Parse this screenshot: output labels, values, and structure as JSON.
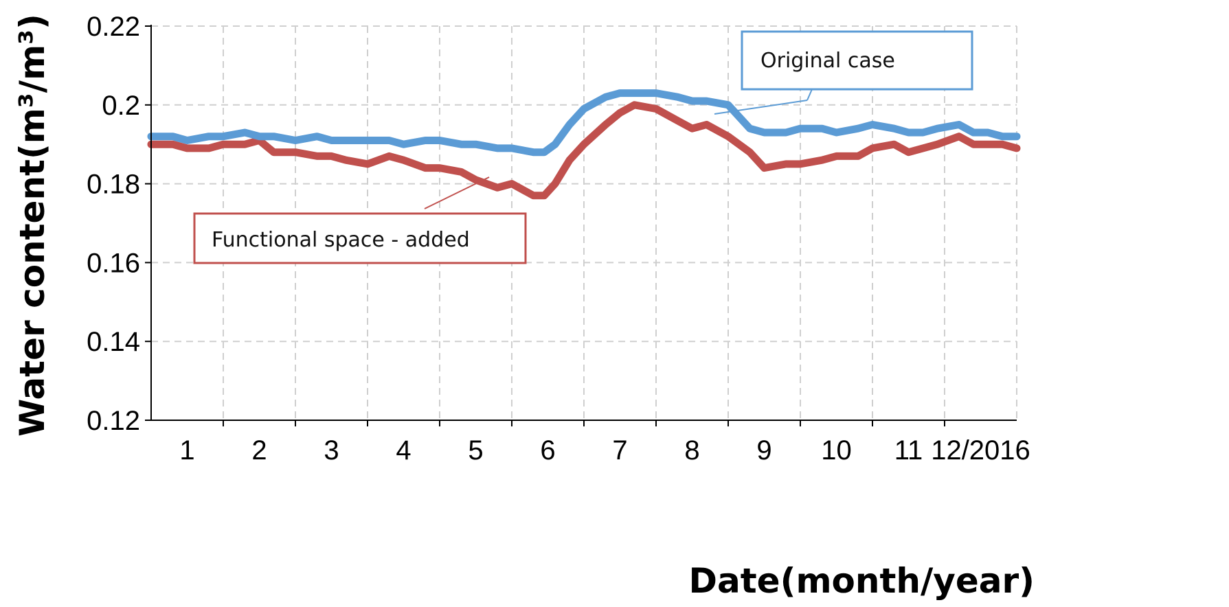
{
  "chart_data": {
    "type": "line",
    "xlabel": "Date(month/year)",
    "ylabel": "Water content(m³/m³)",
    "ylim": [
      0.12,
      0.22
    ],
    "yticks": [
      "0.12",
      "0.14",
      "0.16",
      "0.18",
      "0.2",
      "0.22"
    ],
    "xlim": [
      0.5,
      12.5
    ],
    "xticks": [
      "1",
      "2",
      "3",
      "4",
      "5",
      "6",
      "7",
      "8",
      "9",
      "10",
      "11",
      "12/2016"
    ],
    "grid": true,
    "colors": {
      "original": "#5b9bd5",
      "added": "#c0504d"
    },
    "series": [
      {
        "name": "Original case",
        "x": [
          0.5,
          0.8,
          1.0,
          1.3,
          1.5,
          1.8,
          2.0,
          2.2,
          2.5,
          2.8,
          3.0,
          3.2,
          3.5,
          3.8,
          4.0,
          4.3,
          4.5,
          4.8,
          5.0,
          5.3,
          5.5,
          5.8,
          5.95,
          6.1,
          6.3,
          6.5,
          6.8,
          7.0,
          7.2,
          7.5,
          7.8,
          8.0,
          8.2,
          8.5,
          8.8,
          9.0,
          9.3,
          9.5,
          9.8,
          10.0,
          10.3,
          10.5,
          10.8,
          11.0,
          11.2,
          11.4,
          11.7,
          11.9,
          12.1,
          12.3,
          12.5
        ],
        "values": [
          0.192,
          0.192,
          0.191,
          0.192,
          0.192,
          0.193,
          0.192,
          0.192,
          0.191,
          0.192,
          0.191,
          0.191,
          0.191,
          0.191,
          0.19,
          0.191,
          0.191,
          0.19,
          0.19,
          0.189,
          0.189,
          0.188,
          0.188,
          0.19,
          0.195,
          0.199,
          0.202,
          0.203,
          0.203,
          0.203,
          0.202,
          0.201,
          0.201,
          0.2,
          0.194,
          0.193,
          0.193,
          0.194,
          0.194,
          0.193,
          0.194,
          0.195,
          0.194,
          0.193,
          0.193,
          0.194,
          0.195,
          0.193,
          0.193,
          0.192,
          0.192
        ]
      },
      {
        "name": "Functional space - added",
        "x": [
          0.5,
          0.8,
          1.0,
          1.3,
          1.5,
          1.8,
          2.0,
          2.2,
          2.5,
          2.8,
          3.0,
          3.2,
          3.5,
          3.8,
          4.0,
          4.3,
          4.5,
          4.8,
          5.0,
          5.3,
          5.5,
          5.8,
          5.95,
          6.1,
          6.3,
          6.5,
          6.8,
          7.0,
          7.2,
          7.5,
          7.8,
          8.0,
          8.2,
          8.5,
          8.8,
          9.0,
          9.3,
          9.5,
          9.8,
          10.0,
          10.3,
          10.5,
          10.8,
          11.0,
          11.2,
          11.4,
          11.7,
          11.9,
          12.1,
          12.3,
          12.5
        ],
        "values": [
          0.19,
          0.19,
          0.189,
          0.189,
          0.19,
          0.19,
          0.191,
          0.188,
          0.188,
          0.187,
          0.187,
          0.186,
          0.185,
          0.187,
          0.186,
          0.184,
          0.184,
          0.183,
          0.181,
          0.179,
          0.18,
          0.177,
          0.177,
          0.18,
          0.186,
          0.19,
          0.195,
          0.198,
          0.2,
          0.199,
          0.196,
          0.194,
          0.195,
          0.192,
          0.188,
          0.184,
          0.185,
          0.185,
          0.186,
          0.187,
          0.187,
          0.189,
          0.19,
          0.188,
          0.189,
          0.19,
          0.192,
          0.19,
          0.19,
          0.19,
          0.189
        ]
      }
    ]
  },
  "callouts": {
    "original": "Original case",
    "added": "Functional space - added"
  }
}
